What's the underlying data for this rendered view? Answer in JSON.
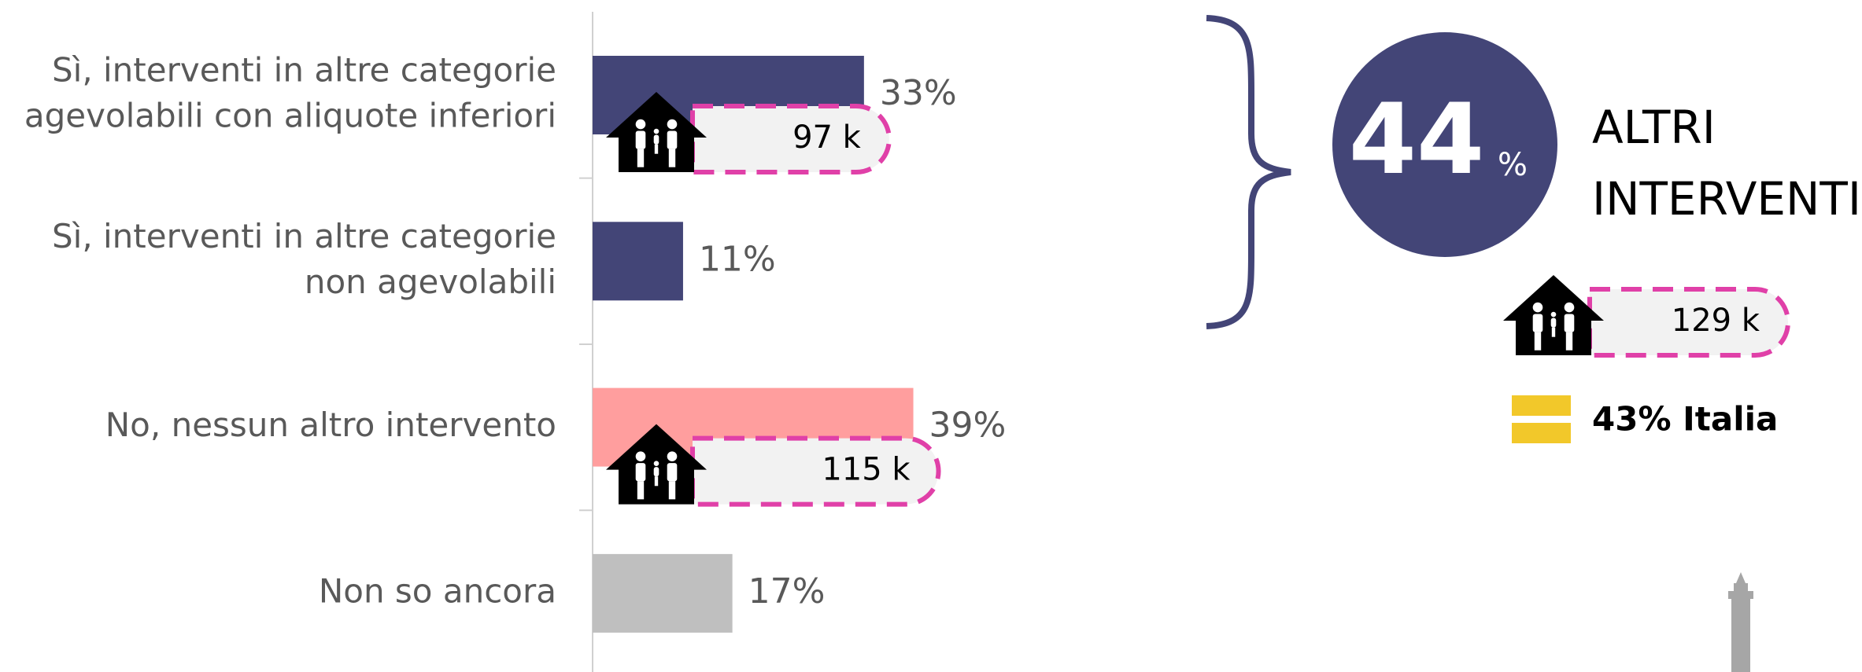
{
  "chart_data": {
    "type": "bar",
    "orientation": "horizontal",
    "categories": [
      [
        "Sì, interventi in altre categorie",
        "agevolabili con aliquote inferiori"
      ],
      [
        "Sì, interventi in altre categorie",
        "non agevolabili"
      ],
      [
        "No, nessun altro intervento"
      ],
      [
        "Non so ancora"
      ]
    ],
    "values": [
      33,
      11,
      39,
      17
    ],
    "value_labels": [
      "33%",
      "11%",
      "39%",
      "17%"
    ],
    "colors": [
      "#434577",
      "#434577",
      "#ff9e9e",
      "#bfbfbf"
    ],
    "household_labels": [
      "97 k",
      null,
      "115 k",
      null
    ],
    "summary": {
      "value": 44,
      "unit": "%",
      "label": [
        "ALTRI",
        "INTERVENTI"
      ],
      "household_label": "129 k",
      "benchmark": "43% Italia"
    }
  }
}
